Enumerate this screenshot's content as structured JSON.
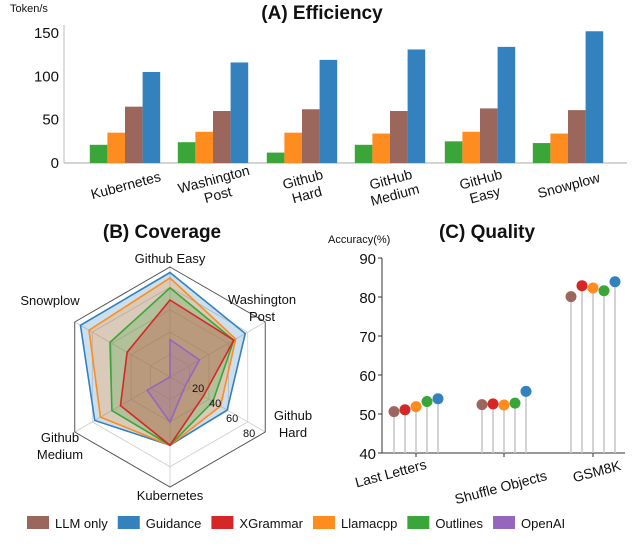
{
  "colors": {
    "LLM only": "#9b665b",
    "Guidance": "#3381bd",
    "XGrammar": "#d62728",
    "Llamacpp": "#ff8c1f",
    "Outlines": "#3aa63a",
    "OpenAI": "#9467bd"
  },
  "legend": [
    "LLM only",
    "Guidance",
    "XGrammar",
    "Llamacpp",
    "Outlines",
    "OpenAI"
  ],
  "chart_data": [
    {
      "type": "bar",
      "title": "(A) Efficiency",
      "ylabel": "Token/s",
      "ylim": [
        0,
        160
      ],
      "yticks": [
        0,
        50,
        100,
        150
      ],
      "categories": [
        [
          "Kubernetes"
        ],
        [
          "Washington",
          "Post"
        ],
        [
          "Github",
          "Hard"
        ],
        [
          "GitHub",
          "Medium"
        ],
        [
          "GitHub",
          "Easy"
        ],
        [
          "Snowplow"
        ]
      ],
      "series": [
        {
          "name": "Outlines",
          "values": [
            21,
            24,
            12,
            21,
            25,
            23
          ]
        },
        {
          "name": "Llamacpp",
          "values": [
            35,
            36,
            35,
            34,
            36,
            34
          ]
        },
        {
          "name": "LLM only",
          "values": [
            65,
            60,
            62,
            60,
            63,
            61
          ]
        },
        {
          "name": "Guidance",
          "values": [
            105,
            116,
            119,
            131,
            134,
            152
          ]
        }
      ]
    },
    {
      "type": "radar",
      "title": "(B)  Coverage",
      "axes": [
        [
          "Github Easy"
        ],
        [
          "Washington",
          "Post"
        ],
        [
          "Github",
          "Hard"
        ],
        [
          "Kubernetes"
        ],
        [
          "Github",
          "Medium"
        ],
        [
          "Snowplow"
        ]
      ],
      "rlim": [
        0,
        100
      ],
      "rticks": [
        20,
        40,
        60,
        80
      ],
      "series": [
        {
          "name": "Guidance",
          "values": [
            95,
            79,
            60,
            62,
            79,
            94
          ]
        },
        {
          "name": "Llamacpp",
          "values": [
            90,
            69,
            53,
            62,
            73,
            85
          ]
        },
        {
          "name": "Outlines",
          "values": [
            81,
            67,
            45,
            62,
            61,
            63
          ]
        },
        {
          "name": "XGrammar",
          "values": [
            70,
            67,
            35,
            62,
            52,
            45
          ]
        },
        {
          "name": "OpenAI",
          "values": [
            34,
            31,
            16,
            41,
            24,
            0
          ]
        }
      ]
    },
    {
      "type": "lollipop",
      "title": "(C) Quality",
      "ylabel": "Accuracy(%)",
      "ylim": [
        40,
        90
      ],
      "yticks": [
        40,
        50,
        60,
        70,
        80,
        90
      ],
      "categories": [
        "Last Letters",
        "Shuffle Objects",
        "GSM8K"
      ],
      "series": [
        {
          "name": "LLM only",
          "values": [
            50.6,
            52.4,
            80.1
          ]
        },
        {
          "name": "XGrammar",
          "values": [
            51.1,
            52.6,
            82.9
          ]
        },
        {
          "name": "Llamacpp",
          "values": [
            51.9,
            52.3,
            82.3
          ]
        },
        {
          "name": "Outlines",
          "values": [
            53.2,
            52.8,
            81.6
          ]
        },
        {
          "name": "Guidance",
          "values": [
            53.9,
            55.8,
            83.9
          ]
        }
      ]
    }
  ]
}
